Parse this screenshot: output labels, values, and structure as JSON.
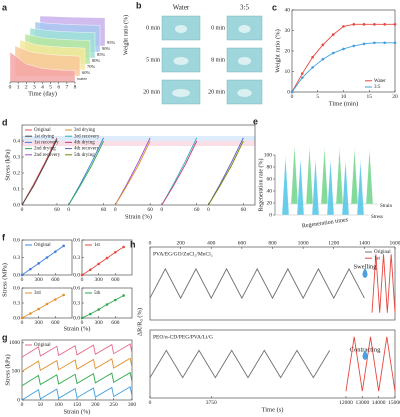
{
  "chart_data": [
    {
      "type": "area3d",
      "label": "a",
      "x": [
        0,
        2,
        4,
        6,
        8
      ],
      "xlim": [
        0,
        8
      ],
      "xticks": [
        0,
        1,
        2,
        3,
        4,
        5,
        6,
        7,
        8
      ],
      "ylim": [
        0,
        100
      ],
      "xlabel": "Time (day)",
      "ylabel": "Weight ratio (%)",
      "series": [
        {
          "name": "water",
          "color": "#f4a6a6",
          "values": [
            100,
            60,
            45,
            40,
            38
          ]
        },
        {
          "name": "60%",
          "color": "#f8c89a",
          "values": [
            100,
            80,
            72,
            68,
            66
          ]
        },
        {
          "name": "70%",
          "color": "#f5e79a",
          "values": [
            100,
            84,
            78,
            75,
            73
          ]
        },
        {
          "name": "80%",
          "color": "#b8e6a0",
          "values": [
            100,
            88,
            83,
            80,
            79
          ]
        },
        {
          "name": "85%",
          "color": "#9fe0d6",
          "values": [
            100,
            92,
            88,
            86,
            85
          ]
        },
        {
          "name": "90%",
          "color": "#a8c8f0",
          "values": [
            100,
            95,
            92,
            90,
            89
          ]
        },
        {
          "name": "95%",
          "color": "#c8b0ec",
          "values": [
            100,
            98,
            96,
            95,
            94
          ]
        }
      ]
    },
    {
      "type": "line",
      "label": "c",
      "x": [
        0,
        2,
        4,
        6,
        8,
        10,
        12,
        14,
        16,
        18,
        20
      ],
      "xlim": [
        0,
        20
      ],
      "xticks": [
        0,
        5,
        10,
        15,
        20
      ],
      "ylim": [
        0,
        40
      ],
      "yticks": [
        0,
        10,
        20,
        30,
        40
      ],
      "xlabel": "Time (min)",
      "ylabel": "Weight ratio (%)",
      "markers": true,
      "legend": "lower right",
      "series": [
        {
          "name": "Water",
          "color": "#e8473f",
          "values": [
            0,
            9,
            17,
            23,
            28,
            32,
            33,
            33,
            33,
            33,
            33
          ]
        },
        {
          "name": "3:5",
          "color": "#3f9fe0",
          "values": [
            0,
            7,
            12,
            16,
            19,
            21,
            22.5,
            23.5,
            24,
            24,
            24
          ]
        }
      ]
    },
    {
      "type": "line",
      "label": "d",
      "xlim": [
        0,
        400
      ],
      "xticks": [
        0,
        60,
        {
          "value": 80,
          "label": "0"
        },
        {
          "value": 140,
          "label": "60"
        },
        {
          "value": 160,
          "label": "0"
        },
        {
          "value": 220,
          "label": "60"
        },
        {
          "value": 240,
          "label": "0"
        },
        {
          "value": 300,
          "label": "60"
        },
        {
          "value": 320,
          "label": "0"
        },
        {
          "value": 380,
          "label": "60"
        }
      ],
      "ylim": [
        0,
        0.5
      ],
      "yticks": [
        {
          "value": 0,
          "label": "0.0"
        },
        0.1,
        0.2,
        0.3,
        0.4
      ],
      "xlabel": "Strain (%)",
      "ylabel": "Stress (kPa)",
      "legend": "upper left",
      "series": [
        {
          "name": "Original",
          "color": "#e05050",
          "x": [
            0,
            20,
            40,
            60
          ],
          "values": [
            0,
            0.13,
            0.27,
            0.42
          ]
        },
        {
          "name": "1st drying",
          "color": "#404040",
          "x": [
            0,
            20,
            40,
            60
          ],
          "values": [
            0,
            0.12,
            0.26,
            0.41
          ]
        },
        {
          "name": "1st recovery",
          "color": "#3f7fe0",
          "x": [
            80,
            100,
            120,
            140
          ],
          "values": [
            0,
            0.13,
            0.27,
            0.42
          ]
        },
        {
          "name": "2nd drying",
          "color": "#2ea84a",
          "x": [
            80,
            100,
            120,
            140
          ],
          "values": [
            0,
            0.12,
            0.25,
            0.4
          ]
        },
        {
          "name": "2nd recovery",
          "color": "#9b4fd0",
          "x": [
            160,
            180,
            200,
            220
          ],
          "values": [
            0,
            0.13,
            0.27,
            0.42
          ]
        },
        {
          "name": "3rd drying",
          "color": "#e0902f",
          "x": [
            160,
            180,
            200,
            220
          ],
          "values": [
            0,
            0.12,
            0.25,
            0.4
          ]
        },
        {
          "name": "3rd recovery",
          "color": "#2fb0c0",
          "x": [
            240,
            260,
            280,
            300
          ],
          "values": [
            0,
            0.13,
            0.27,
            0.42
          ]
        },
        {
          "name": "4th drying",
          "color": "#c04080",
          "x": [
            240,
            260,
            280,
            300
          ],
          "values": [
            0,
            0.12,
            0.25,
            0.4
          ]
        },
        {
          "name": "4th recovery",
          "color": "#5060c0",
          "x": [
            320,
            340,
            360,
            380
          ],
          "values": [
            0,
            0.13,
            0.27,
            0.42
          ]
        },
        {
          "name": "5th drying",
          "color": "#808000",
          "x": [
            320,
            340,
            360,
            380
          ],
          "values": [
            0,
            0.12,
            0.25,
            0.4
          ]
        }
      ]
    },
    {
      "type": "cone3d",
      "label": "e",
      "ylim": [
        0,
        100
      ],
      "yticks": [
        0,
        20,
        40,
        60,
        80,
        100
      ],
      "xlabel": "Regeneration times",
      "ylabel": "Regeneration rate (%)",
      "series": [
        {
          "name": "Stress",
          "color": "#4fc3e8",
          "values": [
            100,
            96,
            95,
            94,
            93,
            92
          ]
        },
        {
          "name": "Strain",
          "color": "#6fd48a",
          "values": [
            100,
            97,
            96,
            95,
            94,
            93
          ]
        }
      ]
    },
    {
      "type": "line",
      "label": "f",
      "x": [
        0,
        150,
        300,
        450,
        600,
        750
      ],
      "xlim": [
        0,
        900
      ],
      "xticks": [
        0,
        300,
        600
      ],
      "ylim": [
        0,
        0.6
      ],
      "yticks": [
        {
          "value": 0,
          "label": "0.0"
        },
        0.3,
        0.6
      ],
      "markers": true,
      "legend": "upper left",
      "series": [
        {
          "name": "Original",
          "color": "#3f7fe0",
          "values": [
            0,
            0.1,
            0.2,
            0.3,
            0.4,
            0.5
          ]
        }
      ]
    },
    {
      "type": "line",
      "x": [
        0,
        150,
        300,
        450,
        600,
        750
      ],
      "xlim": [
        0,
        900
      ],
      "xticks": [
        0,
        300,
        600
      ],
      "ylim": [
        0,
        0.6
      ],
      "yticks": [
        {
          "value": 0,
          "label": "0.0"
        },
        0.3,
        0.6
      ],
      "markers": true,
      "legend": "upper left",
      "series": [
        {
          "name": "1st",
          "color": "#e8473f",
          "values": [
            0,
            0.09,
            0.19,
            0.29,
            0.39,
            0.48
          ]
        }
      ]
    },
    {
      "type": "line",
      "x": [
        0,
        150,
        300,
        450,
        600,
        750
      ],
      "xlim": [
        0,
        900
      ],
      "xticks": [
        0,
        300,
        600
      ],
      "ylim": [
        0,
        0.6
      ],
      "yticks": [
        {
          "value": 0,
          "label": "0.0"
        },
        0.3,
        0.6
      ],
      "markers": true,
      "legend": "upper left",
      "series": [
        {
          "name": "3rd",
          "color": "#e0902f",
          "values": [
            0,
            0.09,
            0.18,
            0.28,
            0.37,
            0.46
          ]
        }
      ]
    },
    {
      "type": "line",
      "x": [
        0,
        150,
        300,
        450,
        600,
        750
      ],
      "xlim": [
        0,
        900
      ],
      "xticks": [
        0,
        300,
        600
      ],
      "ylim": [
        0,
        0.6
      ],
      "yticks": [
        {
          "value": 0,
          "label": "0.0"
        },
        0.3,
        0.6
      ],
      "markers": true,
      "legend": "upper left",
      "series": [
        {
          "name": "5th",
          "color": "#2ea84a",
          "values": [
            0,
            0.08,
            0.17,
            0.27,
            0.36,
            0.45
          ]
        }
      ]
    },
    {
      "type": "line",
      "label": "g",
      "x": [
        0,
        45,
        50,
        95,
        100,
        145,
        150,
        195,
        200,
        245,
        250,
        295,
        300
      ],
      "xlim": [
        0,
        300
      ],
      "xticks": [
        0,
        50,
        100,
        150,
        200,
        250,
        300
      ],
      "ylim": [
        0,
        1050
      ],
      "yticks": [
        0,
        500,
        1000
      ],
      "xlabel": "Strain (%)",
      "ylabel": "Stress (kPa)",
      "legend": "upper left",
      "series": [
        {
          "color": "#3f9fe0",
          "values": [
            0,
            180,
            20,
            190,
            30,
            200,
            40,
            210,
            50,
            220,
            60,
            230,
            70
          ]
        },
        {
          "color": "#2ea84a",
          "values": [
            250,
            430,
            270,
            440,
            280,
            450,
            290,
            460,
            300,
            470,
            310,
            480,
            320
          ]
        },
        {
          "color": "#e0902f",
          "values": [
            500,
            680,
            520,
            690,
            530,
            700,
            540,
            710,
            550,
            720,
            560,
            730,
            570
          ]
        },
        {
          "name": "Original",
          "color": "#e86a8a",
          "values": [
            750,
            930,
            770,
            940,
            780,
            950,
            790,
            960,
            800,
            970,
            810,
            980,
            820
          ]
        }
      ]
    },
    {
      "type": "line",
      "label": "h",
      "xaxis": "top",
      "xlim": [
        0,
        1600
      ],
      "xticks": [
        0,
        200,
        400,
        600,
        800,
        1000,
        1200,
        1400,
        1600
      ],
      "ylim": [
        -1,
        1
      ],
      "legend": "upper right",
      "annotations": [
        "PVA/EG/GO/ZnCl₂/MnCl₂",
        "Swelling"
      ],
      "series": [
        {
          "name": "Original",
          "color": "#707070",
          "x": [
            0,
            100,
            200,
            300,
            400,
            500,
            600,
            700,
            800,
            900,
            1000,
            1100,
            1200,
            1300,
            1400
          ],
          "values": [
            -0.4,
            0.4,
            -0.4,
            0.4,
            -0.4,
            0.4,
            -0.4,
            0.4,
            -0.4,
            0.4,
            -0.4,
            0.4,
            -0.4,
            0.4,
            -0.4
          ]
        },
        {
          "name": "1st",
          "color": "#e8473f",
          "x": [
            1450,
            1475,
            1500,
            1525,
            1550,
            1575,
            1600
          ],
          "values": [
            -0.8,
            0.8,
            -0.8,
            0.8,
            -0.8,
            0.8,
            -0.8
          ]
        }
      ]
    },
    {
      "type": "line",
      "xlim": [
        0,
        15000
      ],
      "xticks": [
        0,
        3750,
        12000,
        13000,
        14000,
        15000
      ],
      "ylim": [
        -1,
        1
      ],
      "xlabel": "Time (s)",
      "annotations": [
        "PEO/α-CD/PEG/PVA/Li/G",
        "Contracting"
      ],
      "series": [
        {
          "color": "#707070",
          "x": [
            0,
            1000,
            2000,
            3000,
            4000,
            5000,
            6000,
            7000,
            8000,
            9000,
            10000,
            11000
          ],
          "values": [
            -0.4,
            0.4,
            -0.4,
            0.4,
            -0.4,
            0.4,
            -0.4,
            0.4,
            -0.4,
            0.4,
            -0.4,
            0.4
          ]
        },
        {
          "color": "#e8473f",
          "x": [
            12000,
            12500,
            13000,
            13500,
            14000,
            14500,
            15000
          ],
          "values": [
            -0.8,
            0.8,
            -0.8,
            0.8,
            -0.8,
            0.8,
            -0.8
          ]
        }
      ]
    }
  ],
  "panel_b": {
    "label": "b",
    "columns": [
      {
        "title": "Water",
        "times": [
          "0 min",
          "5 min",
          "20 min"
        ]
      },
      {
        "title": "3:5",
        "times": [
          "0 min",
          "8 min",
          "20 min"
        ]
      }
    ]
  },
  "panel_f": {
    "xlabel": "Strain (%)",
    "ylabel": "Stress (MPa)"
  },
  "panel_h": {
    "ylabel": "ΔR/R₀ (%)"
  }
}
